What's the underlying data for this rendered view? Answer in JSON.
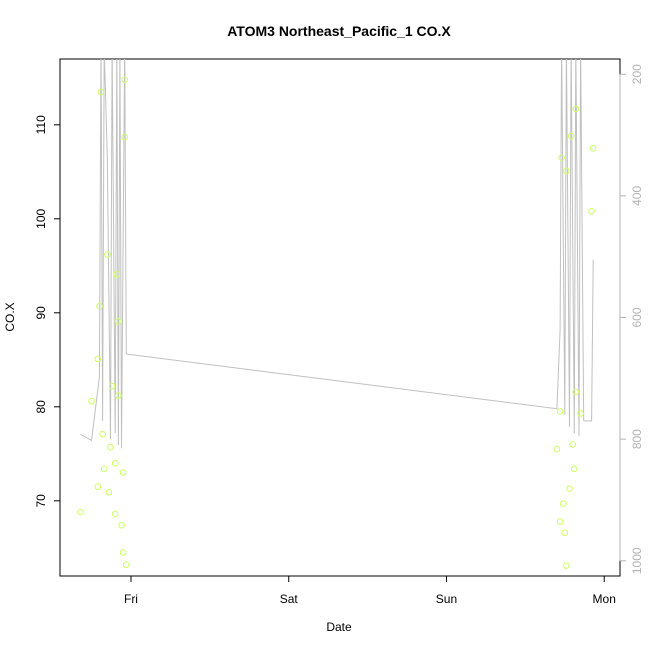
{
  "chart_data": {
    "type": "scatter",
    "title": "ATOM3 Northeast_Pacific_1 CO.X",
    "xlabel": "Date",
    "ylabel": "CO.X",
    "x_ticks": [
      "Fri",
      "Sat",
      "Sun",
      "Mon"
    ],
    "y_ticks": [
      "70",
      "80",
      "90",
      "100",
      "110"
    ],
    "y2_ticks": [
      "200",
      "400",
      "600",
      "800",
      "1000"
    ],
    "ylim": [
      62,
      117
    ],
    "y2lim": [
      1025,
      175
    ],
    "xlim_days": [
      -0.45,
      3.1
    ],
    "colors": {
      "points": "#ccff66",
      "line": "#c0c0c0",
      "right_axis": "#b3b3b3"
    },
    "series": [
      {
        "type": "points",
        "points": [
          [
            -0.32,
            68.8
          ],
          [
            -0.25,
            80.6
          ],
          [
            -0.21,
            71.5
          ],
          [
            -0.21,
            85.1
          ],
          [
            -0.2,
            90.7
          ],
          [
            -0.19,
            113.5
          ],
          [
            -0.18,
            77.1
          ],
          [
            -0.17,
            73.4
          ],
          [
            -0.15,
            96.2
          ],
          [
            -0.14,
            70.9
          ],
          [
            -0.13,
            75.7
          ],
          [
            -0.12,
            82.2
          ],
          [
            -0.1,
            68.6
          ],
          [
            -0.1,
            74.0
          ],
          [
            -0.09,
            94.1
          ],
          [
            -0.08,
            89.1
          ],
          [
            -0.08,
            81.2
          ],
          [
            -0.06,
            67.4
          ],
          [
            -0.05,
            64.5
          ],
          [
            -0.05,
            73.0
          ],
          [
            -0.04,
            114.8
          ],
          [
            -0.04,
            108.7
          ],
          [
            -0.03,
            63.2
          ],
          [
            2.7,
            75.5
          ],
          [
            2.72,
            79.5
          ],
          [
            2.72,
            67.8
          ],
          [
            2.73,
            106.5
          ],
          [
            2.74,
            69.7
          ],
          [
            2.75,
            66.6
          ],
          [
            2.76,
            105.1
          ],
          [
            2.76,
            63.1
          ],
          [
            2.78,
            71.3
          ],
          [
            2.79,
            108.8
          ],
          [
            2.8,
            76.0
          ],
          [
            2.81,
            73.4
          ],
          [
            2.82,
            81.6
          ],
          [
            2.82,
            111.7
          ],
          [
            2.85,
            79.3
          ],
          [
            2.92,
            100.8
          ],
          [
            2.93,
            107.5
          ]
        ]
      },
      {
        "type": "line",
        "axis": "right",
        "points": [
          [
            -0.32,
            792
          ],
          [
            -0.25,
            802
          ],
          [
            -0.2,
            698
          ],
          [
            -0.19,
            150
          ],
          [
            -0.18,
            770
          ],
          [
            -0.17,
            155
          ],
          [
            -0.15,
            335
          ],
          [
            -0.13,
            800
          ],
          [
            -0.12,
            150
          ],
          [
            -0.1,
            790
          ],
          [
            -0.09,
            155
          ],
          [
            -0.08,
            810
          ],
          [
            -0.07,
            150
          ],
          [
            -0.06,
            815
          ],
          [
            -0.04,
            150
          ],
          [
            -0.03,
            660
          ],
          [
            2.7,
            750
          ],
          [
            2.72,
            620
          ],
          [
            2.73,
            150
          ],
          [
            2.75,
            760
          ],
          [
            2.76,
            150
          ],
          [
            2.78,
            780
          ],
          [
            2.79,
            150
          ],
          [
            2.81,
            790
          ],
          [
            2.82,
            150
          ],
          [
            2.84,
            795
          ],
          [
            2.85,
            150
          ],
          [
            2.87,
            770
          ],
          [
            2.92,
            770
          ],
          [
            2.93,
            505
          ]
        ]
      }
    ]
  }
}
